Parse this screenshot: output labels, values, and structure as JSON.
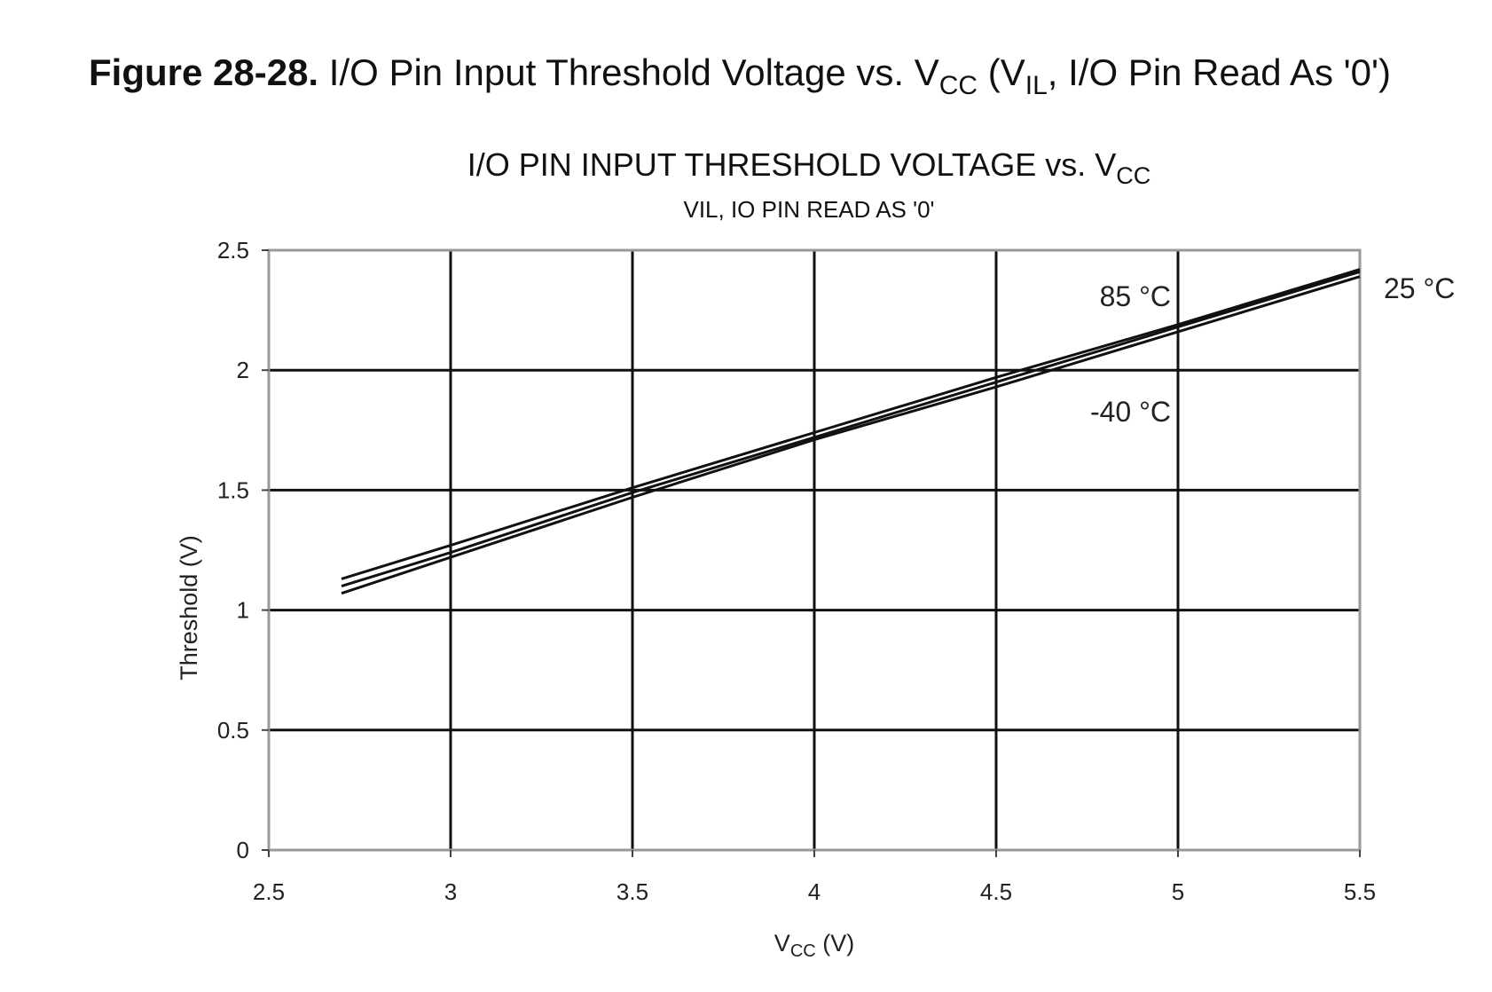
{
  "caption": {
    "figure_number": "Figure 28-28.",
    "text_before_sub": "I/O Pin Input Threshold Voltage vs. V",
    "sub_cc": "CC",
    "text_mid": " (V",
    "sub_il": "IL",
    "text_after": ", I/O Pin Read As '0')"
  },
  "chart_data": {
    "type": "line",
    "title_main": "I/O PIN INPUT THRESHOLD VOLTAGE vs. V",
    "title_sub": "CC",
    "subtitle": "VIL, IO PIN READ AS '0'",
    "xlabel_main": "V",
    "xlabel_sub": "CC",
    "xlabel_unit": " (V)",
    "ylabel": "Threshold (V)",
    "xlim": [
      2.5,
      5.5
    ],
    "ylim": [
      0,
      2.5
    ],
    "xticks": [
      "2.5",
      "3",
      "3.5",
      "4",
      "4.5",
      "5",
      "5.5"
    ],
    "yticks": [
      "0",
      "0.5",
      "1",
      "1.5",
      "2",
      "2.5"
    ],
    "xtick_values": [
      2.5,
      3,
      3.5,
      4,
      4.5,
      5,
      5.5
    ],
    "ytick_values": [
      0,
      0.5,
      1,
      1.5,
      2,
      2.5
    ],
    "grid": true,
    "x": [
      2.7,
      3.0,
      3.5,
      4.0,
      4.5,
      5.0,
      5.5
    ],
    "series": [
      {
        "name": "85 °C",
        "values": [
          1.13,
          1.27,
          1.51,
          1.74,
          1.97,
          2.19,
          2.42
        ]
      },
      {
        "name": "25 °C",
        "values": [
          1.1,
          1.24,
          1.49,
          1.72,
          1.95,
          2.18,
          2.41
        ]
      },
      {
        "name": "-40 °C",
        "values": [
          1.07,
          1.22,
          1.47,
          1.71,
          1.93,
          2.16,
          2.39
        ]
      }
    ],
    "line_color": "#111111",
    "grid_color": "#111111",
    "frame_color": "#999999"
  }
}
